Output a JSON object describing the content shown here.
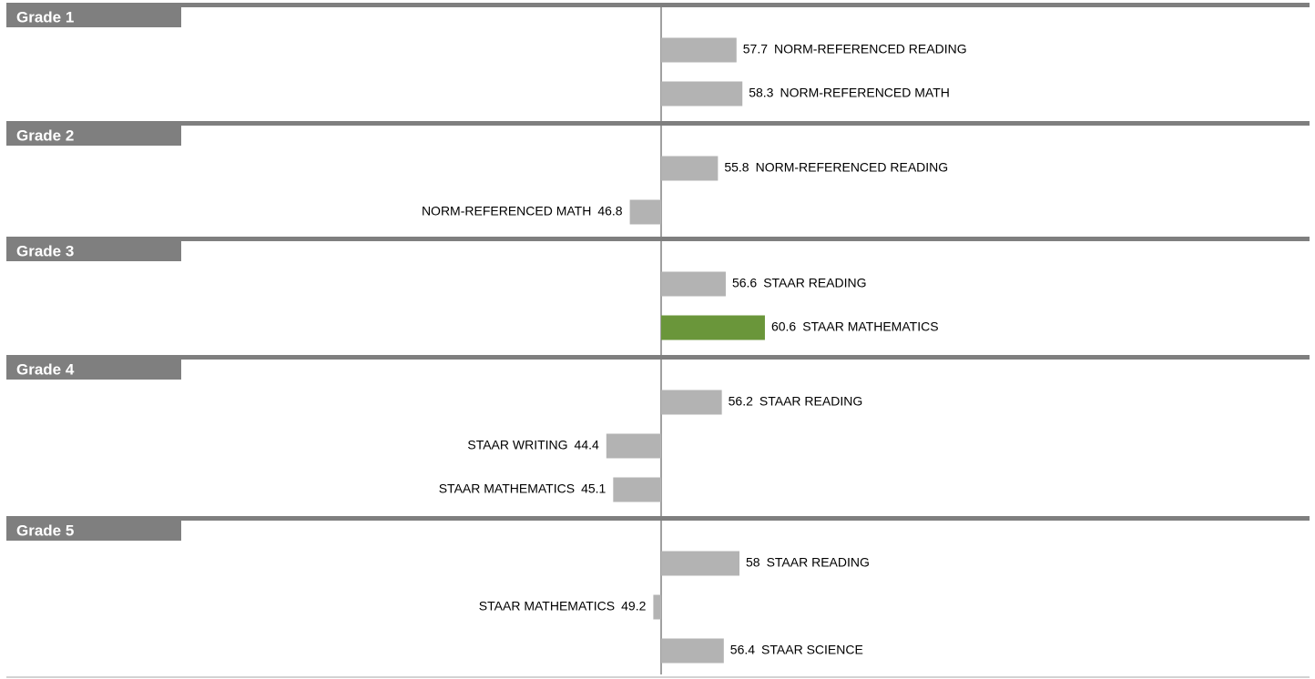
{
  "chart_data": {
    "type": "bar",
    "orientation": "horizontal",
    "baseline": 50,
    "colors": {
      "default_bar": "#b3b3b3",
      "highlight_bar": "#6a963a",
      "band": "#7f7f7f",
      "axis": "#404040"
    },
    "groups": [
      {
        "label": "Grade 1",
        "bars": [
          {
            "label": "NORM-REFERENCED READING",
            "value": 57.7,
            "display": "57.7",
            "highlight": false
          },
          {
            "label": "NORM-REFERENCED MATH",
            "value": 58.3,
            "display": "58.3",
            "highlight": false
          }
        ]
      },
      {
        "label": "Grade 2",
        "bars": [
          {
            "label": "NORM-REFERENCED READING",
            "value": 55.8,
            "display": "55.8",
            "highlight": false
          },
          {
            "label": "NORM-REFERENCED MATH",
            "value": 46.8,
            "display": "46.8",
            "highlight": false
          }
        ]
      },
      {
        "label": "Grade 3",
        "bars": [
          {
            "label": "STAAR READING",
            "value": 56.6,
            "display": "56.6",
            "highlight": false
          },
          {
            "label": "STAAR MATHEMATICS",
            "value": 60.6,
            "display": "60.6",
            "highlight": true
          }
        ]
      },
      {
        "label": "Grade 4",
        "bars": [
          {
            "label": "STAAR READING",
            "value": 56.2,
            "display": "56.2",
            "highlight": false
          },
          {
            "label": "STAAR WRITING",
            "value": 44.4,
            "display": "44.4",
            "highlight": false
          },
          {
            "label": "STAAR MATHEMATICS",
            "value": 45.1,
            "display": "45.1",
            "highlight": false
          }
        ]
      },
      {
        "label": "Grade 5",
        "bars": [
          {
            "label": "STAAR READING",
            "value": 58,
            "display": "58",
            "highlight": false
          },
          {
            "label": "STAAR MATHEMATICS",
            "value": 49.2,
            "display": "49.2",
            "highlight": false
          },
          {
            "label": "STAAR SCIENCE",
            "value": 56.4,
            "display": "56.4",
            "highlight": false
          }
        ]
      }
    ]
  }
}
